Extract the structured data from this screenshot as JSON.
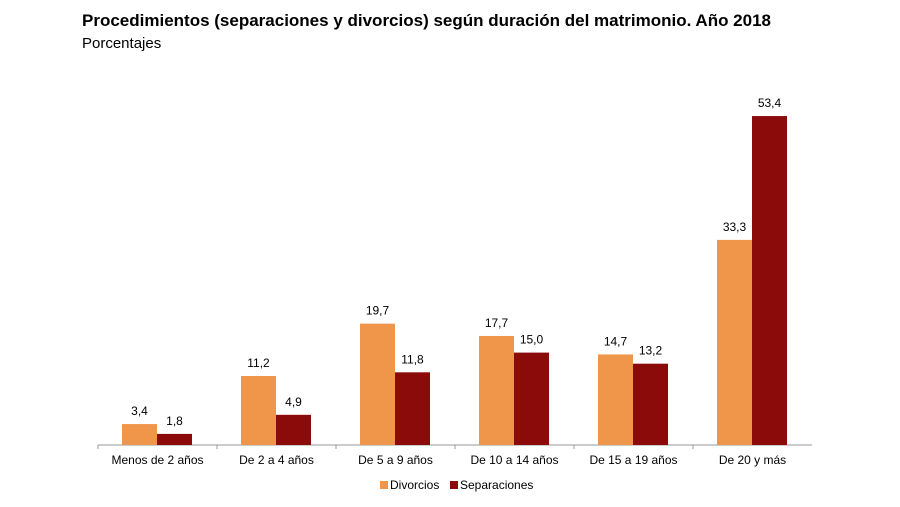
{
  "chart_data": {
    "type": "bar",
    "title": "Procedimientos (separaciones y divorcios) según duración del matrimonio. Año 2018",
    "subtitle": "Porcentajes",
    "categories": [
      "Menos de 2 años",
      "De 2 a 4 años",
      "De 5 a 9 años",
      "De 10 a 14 años",
      "De 15 a 19 años",
      "De 20 y más"
    ],
    "series": [
      {
        "name": "Divorcios",
        "color": "#F0964A",
        "values": [
          3.4,
          11.2,
          19.7,
          17.7,
          14.7,
          33.3
        ],
        "labels": [
          "3,4",
          "11,2",
          "19,7",
          "17,7",
          "14,7",
          "33,3"
        ]
      },
      {
        "name": "Separaciones",
        "color": "#8B0A0A",
        "values": [
          1.8,
          4.9,
          11.8,
          15.0,
          13.2,
          53.4
        ],
        "labels": [
          "1,8",
          "4,9",
          "11,8",
          "15,0",
          "13,2",
          "53,4"
        ]
      }
    ],
    "ylim": [
      0,
      60
    ],
    "grid": false,
    "legend": "bottom"
  }
}
